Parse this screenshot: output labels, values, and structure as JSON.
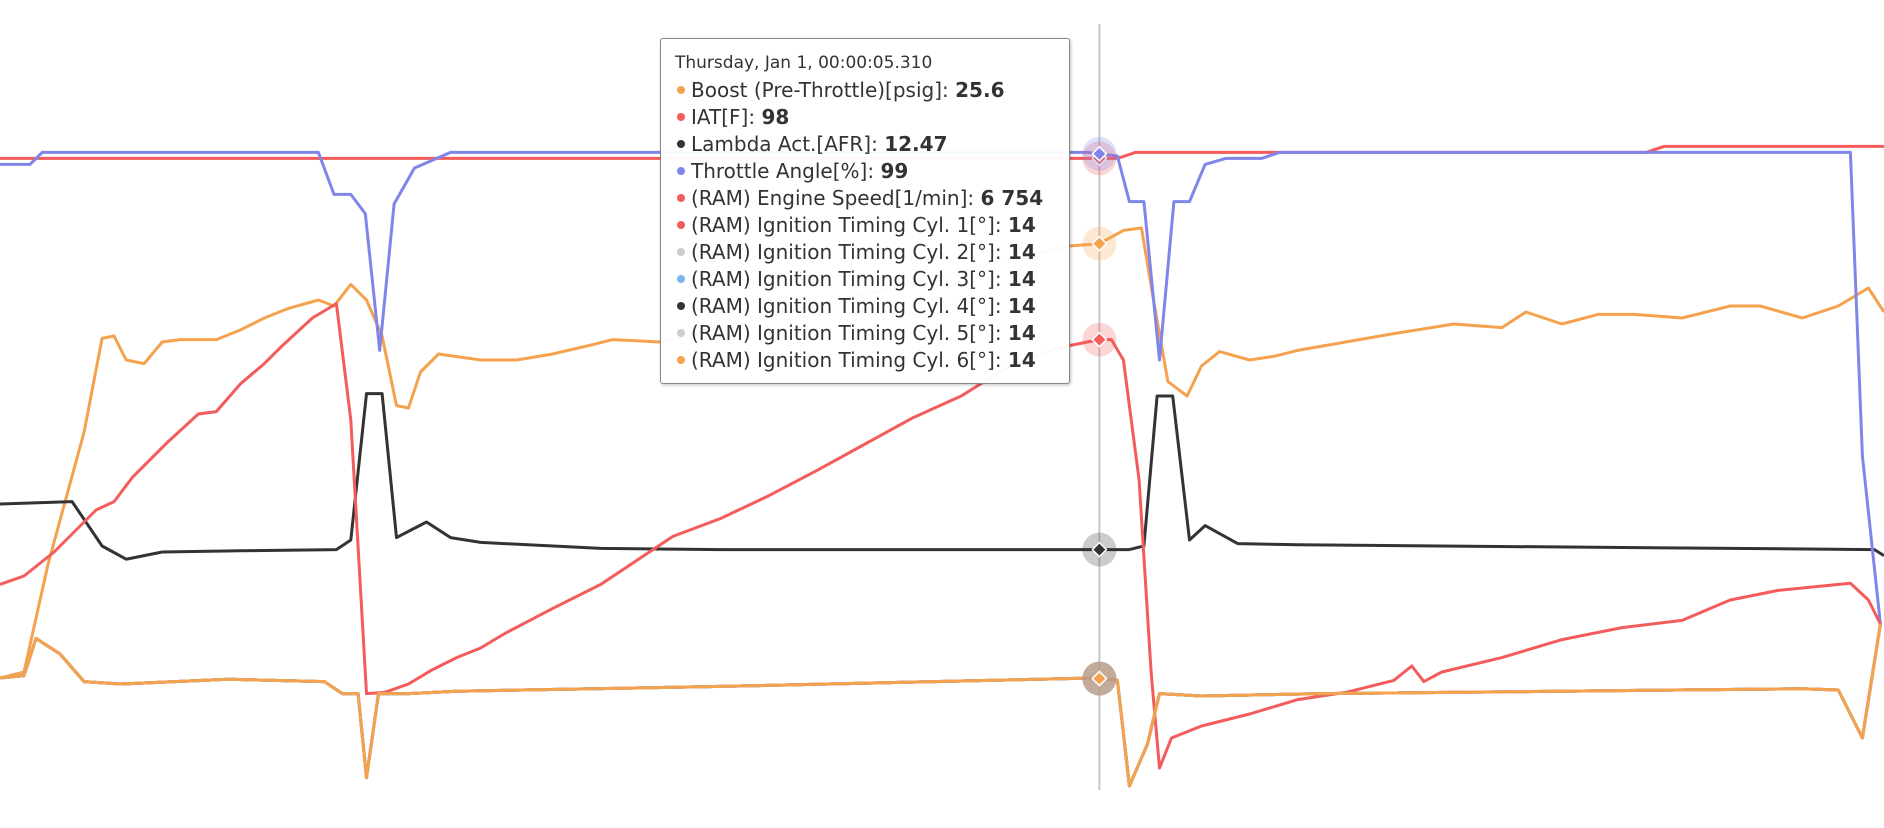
{
  "chart_data": {
    "type": "line",
    "xlim": [
      0,
      1568
    ],
    "ylim": [
      0,
      690
    ],
    "crosshair_x": 915,
    "tooltip": {
      "header": "Thursday, Jan 1, 00:00:05.310",
      "separator": ": "
    },
    "series": [
      {
        "name": "Boost (Pre-Throttle)[psig]",
        "color": "#f4a24e",
        "hover_value": 25.6,
        "x": [
          0,
          20,
          40,
          70,
          85,
          95,
          105,
          120,
          135,
          150,
          180,
          200,
          220,
          240,
          265,
          278,
          292,
          305,
          318,
          330,
          340,
          350,
          365,
          400,
          430,
          460,
          490,
          510,
          550,
          890,
          915,
          935,
          950,
          960,
          972,
          988,
          1000,
          1015,
          1040,
          1060,
          1080,
          1120,
          1160,
          1210,
          1250,
          1270,
          1300,
          1330,
          1360,
          1400,
          1440,
          1465,
          1500,
          1530,
          1555,
          1568
        ],
        "values": [
          125,
          130,
          220,
          330,
          408,
          410,
          390,
          387,
          405,
          407,
          407,
          415,
          425,
          433,
          440,
          435,
          453,
          440,
          410,
          352,
          350,
          380,
          395,
          390,
          390,
          395,
          402,
          407,
          405,
          485,
          487,
          498,
          500,
          440,
          372,
          360,
          385,
          397,
          390,
          393,
          398,
          405,
          412,
          420,
          417,
          430,
          420,
          428,
          428,
          425,
          435,
          435,
          425,
          435,
          450,
          430
        ]
      },
      {
        "name": "IAT[F]",
        "color": "#f45b5b",
        "hover_value": 98,
        "x": [
          0,
          930,
          945,
          1370,
          1385,
          1568
        ],
        "values": [
          558,
          558,
          563,
          563,
          568,
          568
        ]
      },
      {
        "name": "Lambda Act.[AFR]",
        "color": "#333333",
        "hover_value": 12.47,
        "x": [
          0,
          60,
          85,
          105,
          135,
          200,
          280,
          292,
          305,
          318,
          330,
          355,
          375,
          400,
          500,
          600,
          900,
          940,
          952,
          963,
          976,
          990,
          1003,
          1030,
          1080,
          1560,
          1568
        ],
        "values": [
          270,
          272,
          235,
          224,
          230,
          231,
          232,
          240,
          362,
          362,
          242,
          255,
          242,
          238,
          233,
          232,
          232,
          232,
          235,
          360,
          360,
          240,
          252,
          237,
          236,
          232,
          227
        ]
      },
      {
        "name": "Throttle Angle[%]",
        "color": "#8085e9",
        "hover_value": 99,
        "x": [
          0,
          25,
          35,
          265,
          278,
          292,
          304,
          316,
          328,
          345,
          375,
          905,
          930,
          940,
          952,
          965,
          977,
          990,
          1003,
          1020,
          1050,
          1065,
          1540,
          1550,
          1565
        ],
        "values": [
          553,
          553,
          563,
          563,
          528,
          528,
          512,
          398,
          520,
          550,
          563,
          563,
          560,
          522,
          522,
          390,
          522,
          522,
          553,
          558,
          558,
          563,
          563,
          310,
          170
        ]
      },
      {
        "name": "(RAM) Engine Speed[1/min]",
        "color": "#f45b5b",
        "hover_value": 6754,
        "hover_value_label": "6 754",
        "x": [
          0,
          20,
          45,
          80,
          95,
          110,
          140,
          165,
          180,
          200,
          220,
          235,
          260,
          280,
          292,
          305,
          320,
          340,
          360,
          380,
          400,
          420,
          460,
          500,
          530,
          560,
          600,
          640,
          680,
          720,
          760,
          800,
          840,
          880,
          915,
          925,
          935,
          948,
          958,
          965,
          975,
          1000,
          1040,
          1080,
          1120,
          1160,
          1175,
          1185,
          1200,
          1250,
          1300,
          1350,
          1400,
          1440,
          1480,
          1520,
          1540,
          1555,
          1565
        ],
        "values": [
          203,
          210,
          230,
          265,
          272,
          292,
          322,
          345,
          347,
          370,
          387,
          402,
          425,
          437,
          340,
          112,
          113,
          120,
          132,
          142,
          150,
          162,
          183,
          203,
          223,
          243,
          258,
          277,
          298,
          320,
          342,
          360,
          385,
          400,
          407,
          407,
          390,
          290,
          130,
          50,
          75,
          85,
          95,
          107,
          113,
          123,
          135,
          122,
          130,
          142,
          157,
          167,
          173,
          190,
          198,
          202,
          204,
          190,
          170
        ]
      },
      {
        "name": "(RAM) Ignition Timing Cyl. 1[°]",
        "color": "#f45b5b",
        "hover_value": 14,
        "x": [
          0,
          20,
          30,
          50,
          70,
          100,
          190,
          270,
          285,
          298,
          305,
          315,
          340,
          380,
          600,
          910,
          930,
          940,
          955,
          965,
          1000,
          1100,
          1500,
          1530,
          1550,
          1565
        ],
        "values": [
          125,
          127,
          158,
          145,
          122,
          120,
          124,
          122,
          112,
          112,
          42,
          112,
          112,
          114,
          118,
          125,
          123,
          35,
          70,
          112,
          110,
          112,
          116,
          115,
          75,
          170
        ]
      },
      {
        "name": "(RAM) Ignition Timing Cyl. 2[°]",
        "color": "#cccccc",
        "hover_value": 14,
        "x": [
          0,
          20,
          30,
          50,
          70,
          100,
          190,
          270,
          285,
          298,
          305,
          315,
          340,
          380,
          600,
          910,
          930,
          940,
          955,
          965,
          1000,
          1100,
          1500,
          1530,
          1550,
          1565
        ],
        "values": [
          125,
          127,
          158,
          145,
          122,
          120,
          124,
          122,
          112,
          112,
          42,
          112,
          112,
          114,
          118,
          125,
          123,
          35,
          70,
          112,
          110,
          112,
          116,
          115,
          75,
          170
        ]
      },
      {
        "name": "(RAM) Ignition Timing Cyl. 3[°]",
        "color": "#7cb5ec",
        "hover_value": 14,
        "x": [
          0,
          20,
          30,
          50,
          70,
          100,
          190,
          270,
          285,
          298,
          305,
          315,
          340,
          380,
          600,
          910,
          930,
          940,
          955,
          965,
          1000,
          1100,
          1500,
          1530,
          1550,
          1565
        ],
        "values": [
          125,
          127,
          158,
          145,
          122,
          120,
          124,
          122,
          112,
          112,
          42,
          112,
          112,
          114,
          118,
          125,
          123,
          35,
          70,
          112,
          110,
          112,
          116,
          115,
          75,
          170
        ]
      },
      {
        "name": "(RAM) Ignition Timing Cyl. 4[°]",
        "color": "#333333",
        "hover_value": 14,
        "x": [
          0,
          20,
          30,
          50,
          70,
          100,
          190,
          270,
          285,
          298,
          305,
          315,
          340,
          380,
          600,
          910,
          930,
          940,
          955,
          965,
          1000,
          1100,
          1500,
          1530,
          1550,
          1565
        ],
        "values": [
          125,
          127,
          158,
          145,
          122,
          120,
          124,
          122,
          112,
          112,
          42,
          112,
          112,
          114,
          118,
          125,
          123,
          35,
          70,
          112,
          110,
          112,
          116,
          115,
          75,
          170
        ]
      },
      {
        "name": "(RAM) Ignition Timing Cyl. 5[°]",
        "color": "#cccccc",
        "hover_value": 14,
        "x": [
          0,
          20,
          30,
          50,
          70,
          100,
          190,
          270,
          285,
          298,
          305,
          315,
          340,
          380,
          600,
          910,
          930,
          940,
          955,
          965,
          1000,
          1100,
          1500,
          1530,
          1550,
          1565
        ],
        "values": [
          125,
          127,
          158,
          145,
          122,
          120,
          124,
          122,
          112,
          112,
          42,
          112,
          112,
          114,
          118,
          125,
          123,
          35,
          70,
          112,
          110,
          112,
          116,
          115,
          75,
          170
        ]
      },
      {
        "name": "(RAM) Ignition Timing Cyl. 6[°]",
        "color": "#f4a24e",
        "hover_value": 14,
        "x": [
          0,
          20,
          30,
          50,
          70,
          100,
          190,
          270,
          285,
          298,
          305,
          315,
          340,
          380,
          600,
          910,
          930,
          940,
          955,
          965,
          1000,
          1100,
          1500,
          1530,
          1550,
          1565
        ],
        "values": [
          125,
          127,
          158,
          145,
          122,
          120,
          124,
          122,
          112,
          112,
          42,
          112,
          112,
          114,
          118,
          125,
          123,
          35,
          70,
          112,
          110,
          112,
          116,
          115,
          75,
          170
        ]
      }
    ]
  }
}
